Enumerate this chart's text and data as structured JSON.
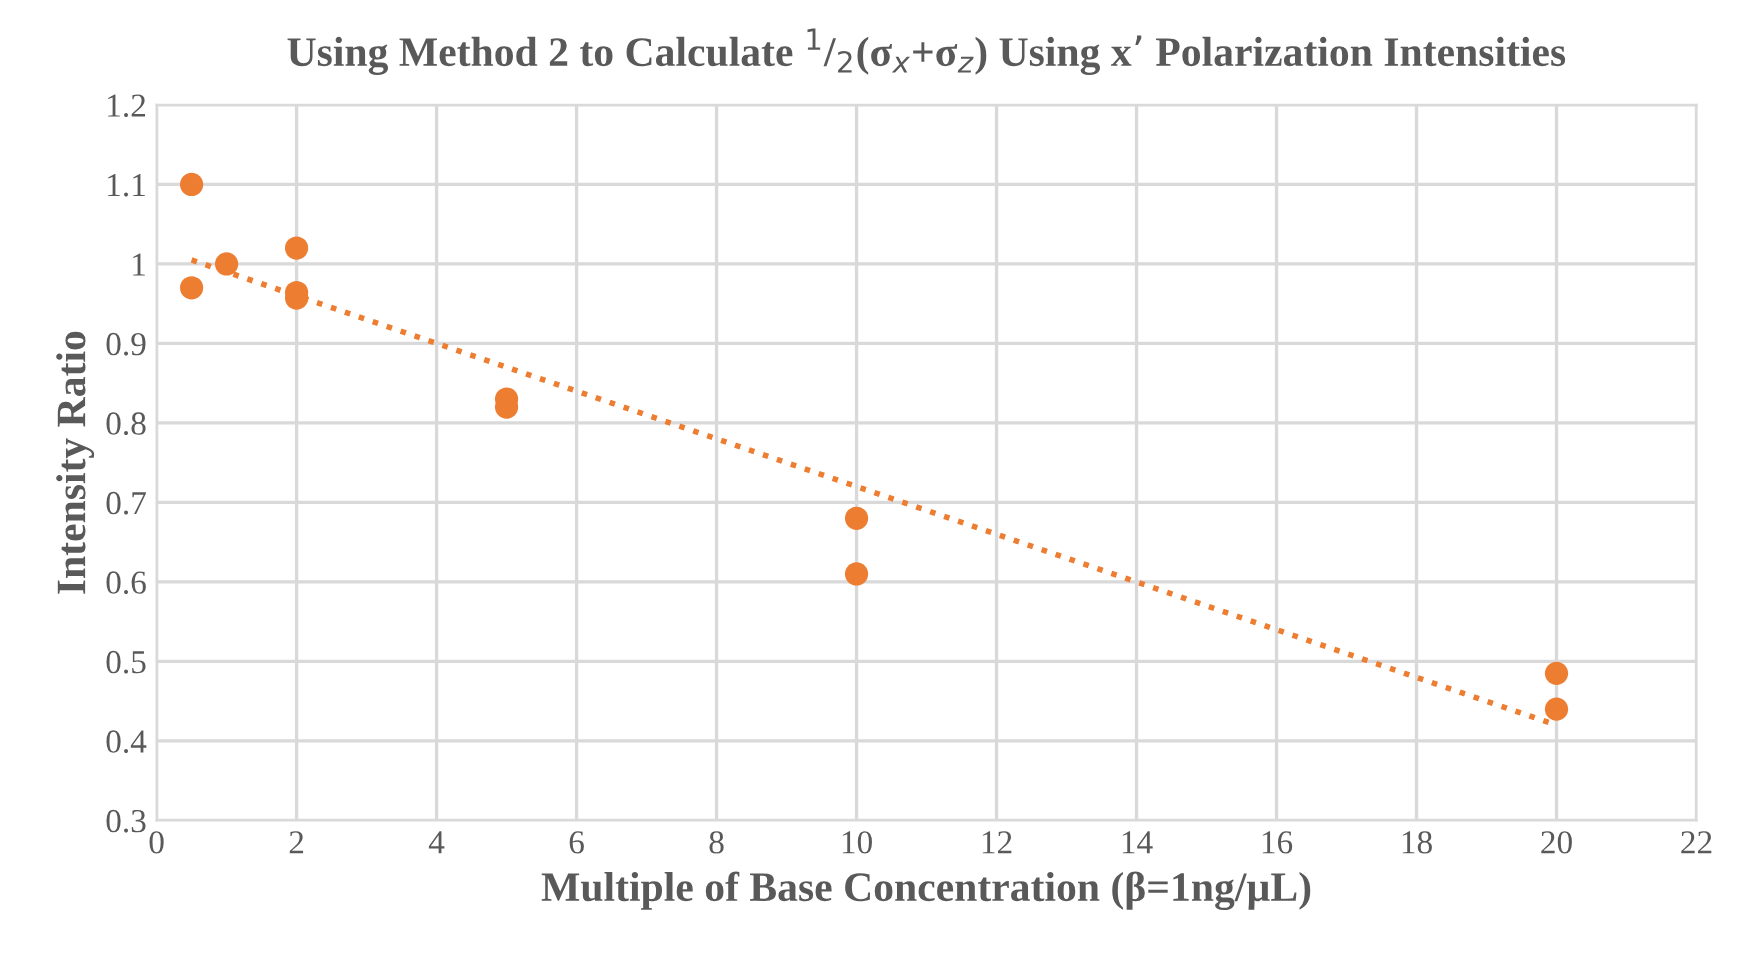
{
  "chart_data": {
    "type": "scatter",
    "title": "Using Method 2 to Calculate $^{1}$/$_{2}$(σ$_{x}$+σ$_{z}$) Using x’ Polarization Intensities",
    "xlabel": "Multiple of Base Concentration (β=1ng/µL)",
    "ylabel": "Intensity Ratio",
    "series": [
      {
        "color": "#ed7d31",
        "marker": "circle",
        "x": [
          0.5,
          0.5,
          1,
          2,
          2,
          2,
          5,
          5,
          10,
          10,
          20,
          20
        ],
        "values": [
          1.1,
          0.97,
          1.0,
          1.02,
          0.964,
          0.957,
          0.83,
          0.82,
          0.68,
          0.61,
          0.485,
          0.44
        ]
      },
      {
        "type": "line",
        "color": "#ed7d31",
        "line_style": "dotted",
        "marker": "none",
        "x": [
          0.5,
          20
        ],
        "values": [
          1.005,
          0.42
        ]
      }
    ],
    "xlim": [
      0,
      22
    ],
    "xticks": [
      0,
      2,
      4,
      6,
      8,
      10,
      12,
      14,
      16,
      18,
      20,
      22
    ],
    "ylim": [
      0.3,
      1.2
    ],
    "yticks": [
      0.3,
      0.4,
      0.5,
      0.6,
      0.7,
      0.8,
      0.9,
      1,
      1.1,
      1.2
    ],
    "grid": true,
    "legend": false
  }
}
